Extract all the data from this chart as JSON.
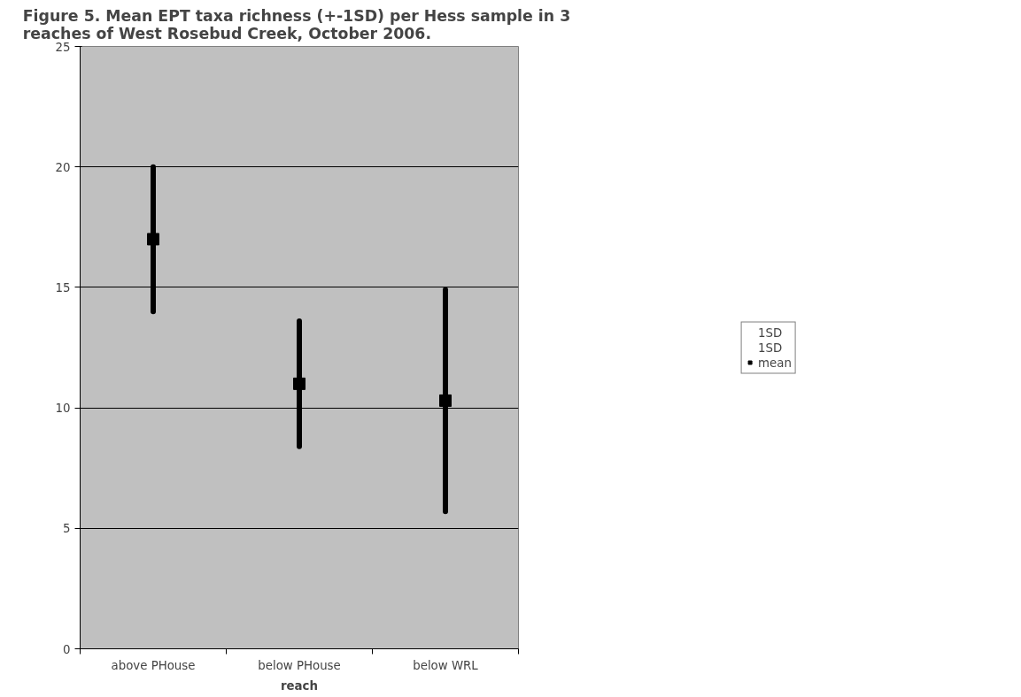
{
  "chart_data": {
    "type": "scatter",
    "title": "Figure 5.  Mean EPT taxa richness (+-1SD) per Hess sample in 3\nreaches of West Rosebud Creek, October 2006.",
    "xlabel": "reach",
    "categories": [
      "above PHouse",
      "below PHouse",
      "below WRL"
    ],
    "series": [
      {
        "name": "1SD",
        "values": [
          null,
          null,
          null
        ]
      },
      {
        "name": "1SD",
        "values": [
          null,
          null,
          null
        ]
      },
      {
        "name": "mean",
        "color": "#000000",
        "marker": "square",
        "values": [
          17,
          11,
          10.3
        ],
        "errors": [
          3,
          2.6,
          4.6
        ]
      }
    ],
    "ylim": [
      0,
      25
    ],
    "yticks": [
      0,
      5,
      10,
      15,
      20,
      25
    ],
    "grid": "y",
    "legend": "right"
  }
}
